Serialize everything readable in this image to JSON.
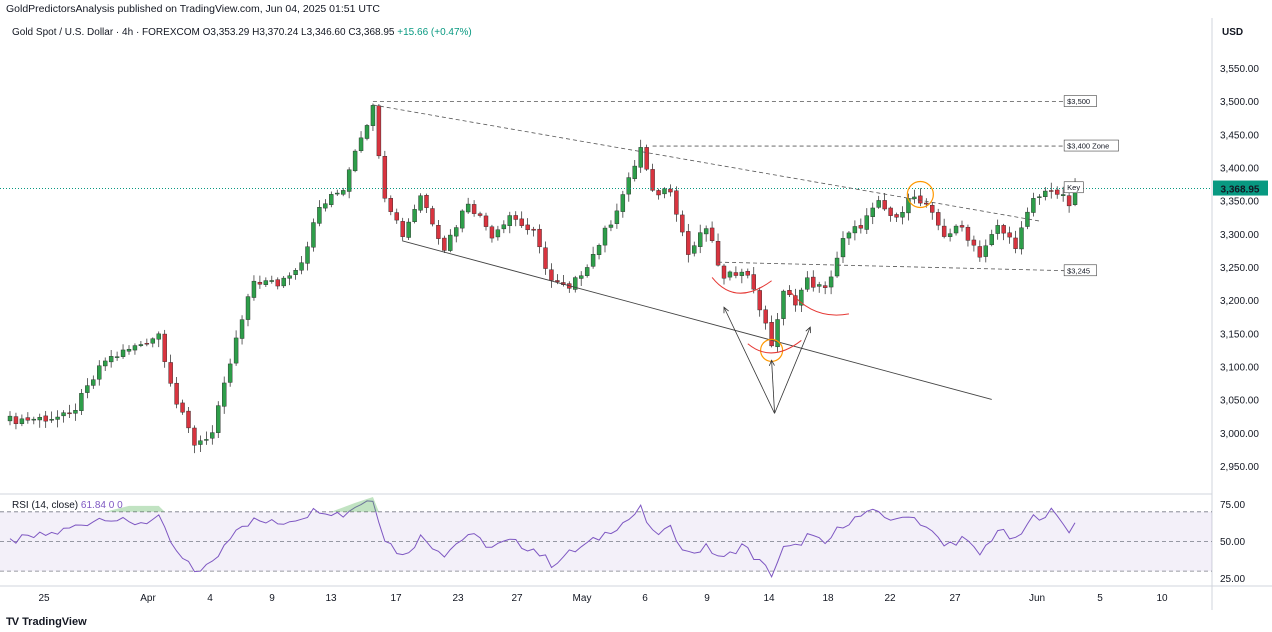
{
  "header": {
    "publisher": "GoldPredictorsAnalysis published on TradingView.com, Jun 04, 2025 01:51 UTC",
    "symbol": "Gold Spot / U.S. Dollar · 4h · FOREXCOM",
    "open": "O3,353.29",
    "high": "H3,370.24",
    "low": "L3,346.60",
    "close": "C3,368.95",
    "change": "+15.66 (+0.47%)",
    "currency": "USD"
  },
  "rsi": {
    "label": "RSI (14, close)",
    "value": "61.84",
    "extra1": "0",
    "extra2": "0"
  },
  "footer": {
    "brand": "TradingView",
    "logo": "TV"
  },
  "colors": {
    "up": "#089981",
    "down": "#f23645",
    "up_candle": "#2e9e4a",
    "down_candle": "#d8343f",
    "rsi": "#7e57c2",
    "price_tag": "#089981",
    "highlight": "#ff9800"
  },
  "chart_data": [
    {
      "type": "candlestick",
      "title": "Gold Spot / U.S. Dollar · 4h · FOREXCOM",
      "ylim": [
        2910,
        3620
      ],
      "y_ticks": [
        "3,550.00",
        "3,500.00",
        "3,450.00",
        "3,400.00",
        "3,350.00",
        "3,300.00",
        "3,250.00",
        "3,200.00",
        "3,150.00",
        "3,100.00",
        "3,050.00",
        "3,000.00",
        "2,950.00"
      ],
      "x_ticks": [
        "25",
        "Apr",
        "4",
        "9",
        "13",
        "17",
        "23",
        "27",
        "May",
        "6",
        "9",
        "14",
        "18",
        "22",
        "27",
        "Jun",
        "5",
        "10"
      ],
      "last_price": "3,368.95",
      "close_path": [
        [
          0,
          3020
        ],
        [
          10,
          3025
        ],
        [
          16,
          3110
        ],
        [
          21,
          3130
        ],
        [
          25,
          3150
        ],
        [
          28,
          3045
        ],
        [
          31,
          2985
        ],
        [
          34,
          3000
        ],
        [
          38,
          3140
        ],
        [
          41,
          3230
        ],
        [
          45,
          3225
        ],
        [
          49,
          3260
        ],
        [
          52,
          3340
        ],
        [
          56,
          3370
        ],
        [
          58,
          3430
        ],
        [
          61,
          3490
        ],
        [
          63,
          3360
        ],
        [
          66,
          3300
        ],
        [
          69,
          3360
        ],
        [
          73,
          3280
        ],
        [
          77,
          3350
        ],
        [
          81,
          3300
        ],
        [
          84,
          3330
        ],
        [
          88,
          3300
        ],
        [
          91,
          3230
        ],
        [
          94,
          3215
        ],
        [
          98,
          3270
        ],
        [
          101,
          3320
        ],
        [
          104,
          3380
        ],
        [
          106,
          3430
        ],
        [
          108,
          3360
        ],
        [
          111,
          3370
        ],
        [
          114,
          3270
        ],
        [
          117,
          3310
        ],
        [
          120,
          3230
        ],
        [
          123,
          3250
        ],
        [
          125,
          3220
        ],
        [
          127,
          3160
        ],
        [
          128,
          3135
        ],
        [
          130,
          3210
        ],
        [
          132,
          3200
        ],
        [
          134,
          3230
        ],
        [
          137,
          3215
        ],
        [
          140,
          3290
        ],
        [
          143,
          3315
        ],
        [
          146,
          3345
        ],
        [
          149,
          3320
        ],
        [
          151,
          3360
        ],
        [
          154,
          3340
        ],
        [
          157,
          3300
        ],
        [
          160,
          3310
        ],
        [
          163,
          3270
        ],
        [
          166,
          3310
        ],
        [
          169,
          3285
        ],
        [
          172,
          3350
        ],
        [
          175,
          3370
        ],
        [
          178,
          3345
        ],
        [
          179,
          3368.95
        ]
      ],
      "levels": [
        {
          "label": "$3,500",
          "value": 3500
        },
        {
          "label": "$3,400 Zone",
          "value": 3433
        },
        {
          "label": "Key",
          "value": 3340
        },
        {
          "label": "$3,245",
          "value": 3245
        }
      ],
      "trendlines": [
        {
          "from": [
            61,
            3495
          ],
          "to": [
            173,
            3320
          ],
          "style": "dashed"
        },
        {
          "from": [
            66,
            3290
          ],
          "to": [
            165,
            3051
          ],
          "style": "solid"
        },
        {
          "from": [
            119,
            3258
          ],
          "to": [
            178,
            3245
          ],
          "style": "dashed"
        }
      ]
    },
    {
      "type": "line",
      "title": "RSI (14, close)",
      "ylim": [
        20,
        82
      ],
      "y_ticks": [
        "75.00",
        "50.00",
        "25.00"
      ],
      "bands": [
        30,
        50,
        70
      ],
      "current": 61.84,
      "path": [
        [
          0,
          50
        ],
        [
          8,
          56
        ],
        [
          16,
          67
        ],
        [
          20,
          62
        ],
        [
          25,
          65
        ],
        [
          28,
          42
        ],
        [
          31,
          30
        ],
        [
          34,
          35
        ],
        [
          38,
          60
        ],
        [
          41,
          64
        ],
        [
          45,
          62
        ],
        [
          49,
          67
        ],
        [
          52,
          72
        ],
        [
          56,
          68
        ],
        [
          58,
          74
        ],
        [
          61,
          79
        ],
        [
          63,
          52
        ],
        [
          66,
          40
        ],
        [
          69,
          53
        ],
        [
          73,
          42
        ],
        [
          77,
          55
        ],
        [
          81,
          46
        ],
        [
          84,
          50
        ],
        [
          88,
          45
        ],
        [
          91,
          35
        ],
        [
          94,
          42
        ],
        [
          98,
          50
        ],
        [
          101,
          58
        ],
        [
          104,
          65
        ],
        [
          106,
          72
        ],
        [
          108,
          55
        ],
        [
          111,
          58
        ],
        [
          114,
          42
        ],
        [
          117,
          46
        ],
        [
          120,
          38
        ],
        [
          123,
          48
        ],
        [
          125,
          40
        ],
        [
          127,
          32
        ],
        [
          128,
          28
        ],
        [
          130,
          45
        ],
        [
          132,
          46
        ],
        [
          134,
          54
        ],
        [
          137,
          48
        ],
        [
          140,
          62
        ],
        [
          143,
          67
        ],
        [
          146,
          70
        ],
        [
          149,
          63
        ],
        [
          151,
          69
        ],
        [
          154,
          60
        ],
        [
          157,
          47
        ],
        [
          160,
          52
        ],
        [
          163,
          41
        ],
        [
          166,
          58
        ],
        [
          169,
          50
        ],
        [
          172,
          66
        ],
        [
          175,
          70
        ],
        [
          178,
          58
        ],
        [
          179,
          62
        ]
      ]
    }
  ]
}
